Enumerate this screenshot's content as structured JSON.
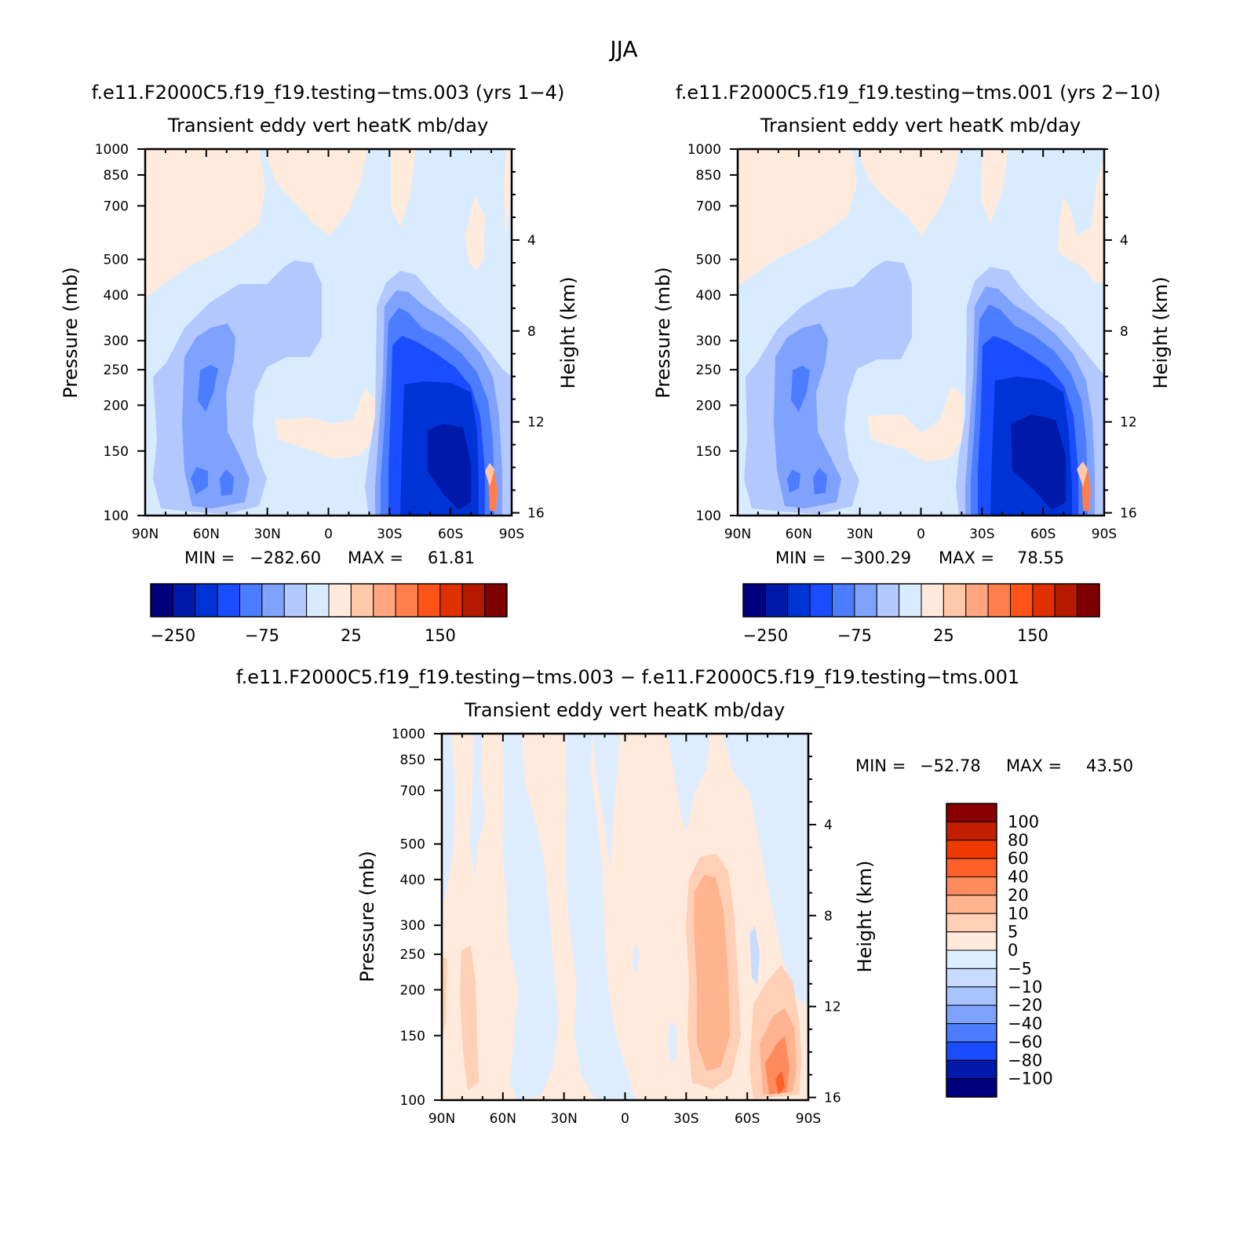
{
  "figure": {
    "title": "JJA"
  },
  "colors": {
    "scale16": [
      "#00007f",
      "#0019a8",
      "#0033d6",
      "#1a4dff",
      "#4c7cff",
      "#7fa2ff",
      "#b3c8ff",
      "#d9ecff",
      "#ffeadc",
      "#ffc8a8",
      "#ffa57f",
      "#ff7f4c",
      "#ff5319",
      "#e03000",
      "#b51a00",
      "#7f0000"
    ],
    "diff": {
      "n100": "#00007f",
      "n80": "#0019a8",
      "n60": "#1a4dff",
      "n40": "#4c7cff",
      "n20": "#7fa2ff",
      "n10": "#a9c3ff",
      "n5": "#c9dcff",
      "n0": "#ddecff",
      "p0": "#ffeadc",
      "p5": "#ffd0b5",
      "p10": "#ffb38f",
      "p20": "#ff8a5c",
      "p40": "#ff5f28",
      "p60": "#ee3a00",
      "p80": "#c21f00",
      "p100": "#8a0000"
    }
  },
  "chart_data": [
    {
      "type": "contour",
      "title": "f.e11.F2000C5.f19_f19.testing−tms.003 (yrs 1−4)",
      "subtitle": "Transient eddy vert heatK mb/day",
      "ylabel": "Pressure (mb)",
      "ylabel_right": "Height (km)",
      "x_ticklabels": [
        "90N",
        "60N",
        "30N",
        "0",
        "30S",
        "60S",
        "90S"
      ],
      "y_ticklabels": [
        "100",
        "150",
        "200",
        "250",
        "300",
        "400",
        "500",
        "700",
        "850",
        "1000"
      ],
      "y_right_ticklabels": [
        "16",
        "12",
        "8",
        "4"
      ],
      "ylim": [
        1000,
        100
      ],
      "yscale": "log",
      "min_label": "MIN =",
      "min_value": "−282.60",
      "max_label": "MAX =",
      "max_value": "61.81",
      "min": -282.6,
      "max": 61.81,
      "colorbar_ticklabels": [
        "−250",
        "−75",
        "25",
        "150"
      ],
      "colorbar_orientation": "horizontal"
    },
    {
      "type": "contour",
      "title": "f.e11.F2000C5.f19_f19.testing−tms.001 (yrs 2−10)",
      "subtitle": "Transient eddy vert heatK mb/day",
      "ylabel": "Pressure (mb)",
      "ylabel_right": "Height (km)",
      "x_ticklabels": [
        "90N",
        "60N",
        "30N",
        "0",
        "30S",
        "60S",
        "90S"
      ],
      "y_ticklabels": [
        "100",
        "150",
        "200",
        "250",
        "300",
        "400",
        "500",
        "700",
        "850",
        "1000"
      ],
      "y_right_ticklabels": [
        "16",
        "12",
        "8",
        "4"
      ],
      "ylim": [
        1000,
        100
      ],
      "yscale": "log",
      "min_label": "MIN =",
      "min_value": "−300.29",
      "max_label": "MAX =",
      "max_value": "78.55",
      "min": -300.29,
      "max": 78.55,
      "colorbar_ticklabels": [
        "−250",
        "−75",
        "25",
        "150"
      ],
      "colorbar_orientation": "horizontal"
    },
    {
      "type": "contour",
      "title": "f.e11.F2000C5.f19_f19.testing−tms.003 − f.e11.F2000C5.f19_f19.testing−tms.001",
      "subtitle": "Transient eddy vert heatK mb/day",
      "ylabel": "Pressure (mb)",
      "ylabel_right": "Height (km)",
      "x_ticklabels": [
        "90N",
        "60N",
        "30N",
        "0",
        "30S",
        "60S",
        "90S"
      ],
      "y_ticklabels": [
        "100",
        "150",
        "200",
        "250",
        "300",
        "400",
        "500",
        "700",
        "850",
        "1000"
      ],
      "y_right_ticklabels": [
        "16",
        "12",
        "8",
        "4"
      ],
      "ylim": [
        1000,
        100
      ],
      "yscale": "log",
      "min_label": "MIN =",
      "min_value": "−52.78",
      "max_label": "MAX =",
      "max_value": "43.50",
      "min": -52.78,
      "max": 43.5,
      "colorbar_ticklabels": [
        "100",
        "80",
        "60",
        "40",
        "20",
        "10",
        "5",
        "0",
        "−5",
        "−10",
        "−20",
        "−40",
        "−60",
        "−80",
        "−100"
      ],
      "colorbar_orientation": "vertical"
    }
  ]
}
